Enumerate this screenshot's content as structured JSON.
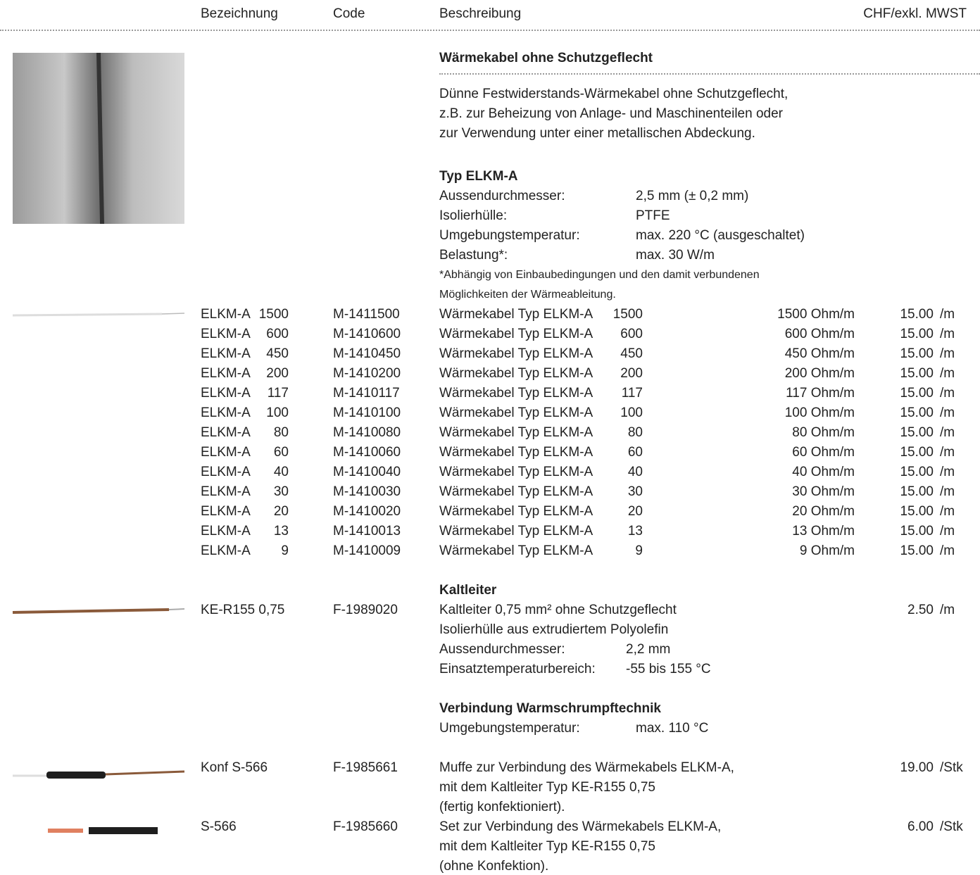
{
  "header": {
    "columns": [
      "Bezeichnung",
      "Code",
      "Beschreibung",
      "CHF/exkl. MWST"
    ]
  },
  "section": {
    "title": "Wärmekabel ohne Schutzgeflecht",
    "intro": [
      "Dünne Festwiderstands-Wärmekabel ohne Schutzgeflecht,",
      "z.B. zur Beheizung von Anlage- und Maschinenteilen oder",
      "zur Verwendung unter einer metallischen Abdeckung."
    ]
  },
  "type_block": {
    "title": "Typ ELKM-A",
    "specs": [
      [
        "Aussendurchmesser:",
        "2,5 mm (± 0,2 mm)"
      ],
      [
        "Isolierhülle:",
        "PTFE"
      ],
      [
        "Umgebungstemperatur:",
        "max. 220 °C (ausgeschaltet)"
      ],
      [
        "Belastung*:",
        "max. 30 W/m"
      ]
    ],
    "note": [
      "*Abhängig von Einbaubedingungen und den damit verbundenen",
      "Möglichkeiten der Wärmeableitung."
    ]
  },
  "products": [
    {
      "name": "ELKM-A",
      "size": "1500",
      "code": "M-1411500",
      "description": "Wärmekabel Typ ELKM-A",
      "resistance": "1500 Ohm/m",
      "price": "15.00",
      "unit": "/m"
    },
    {
      "name": "ELKM-A",
      "size": "600",
      "code": "M-1410600",
      "description": "Wärmekabel Typ ELKM-A",
      "resistance": "600 Ohm/m",
      "price": "15.00",
      "unit": "/m"
    },
    {
      "name": "ELKM-A",
      "size": "450",
      "code": "M-1410450",
      "description": "Wärmekabel Typ ELKM-A",
      "resistance": "450 Ohm/m",
      "price": "15.00",
      "unit": "/m"
    },
    {
      "name": "ELKM-A",
      "size": "200",
      "code": "M-1410200",
      "description": "Wärmekabel Typ ELKM-A",
      "resistance": "200 Ohm/m",
      "price": "15.00",
      "unit": "/m"
    },
    {
      "name": "ELKM-A",
      "size": "117",
      "code": "M-1410117",
      "description": "Wärmekabel Typ ELKM-A",
      "resistance": "117 Ohm/m",
      "price": "15.00",
      "unit": "/m"
    },
    {
      "name": "ELKM-A",
      "size": "100",
      "code": "M-1410100",
      "description": "Wärmekabel Typ ELKM-A",
      "resistance": "100 Ohm/m",
      "price": "15.00",
      "unit": "/m"
    },
    {
      "name": "ELKM-A",
      "size": "80",
      "code": "M-1410080",
      "description": "Wärmekabel Typ ELKM-A",
      "resistance": "80 Ohm/m",
      "price": "15.00",
      "unit": "/m"
    },
    {
      "name": "ELKM-A",
      "size": "60",
      "code": "M-1410060",
      "description": "Wärmekabel Typ ELKM-A",
      "resistance": "60 Ohm/m",
      "price": "15.00",
      "unit": "/m"
    },
    {
      "name": "ELKM-A",
      "size": "40",
      "code": "M-1410040",
      "description": "Wärmekabel Typ ELKM-A",
      "resistance": "40 Ohm/m",
      "price": "15.00",
      "unit": "/m"
    },
    {
      "name": "ELKM-A",
      "size": "30",
      "code": "M-1410030",
      "description": "Wärmekabel Typ ELKM-A",
      "resistance": "30 Ohm/m",
      "price": "15.00",
      "unit": "/m"
    },
    {
      "name": "ELKM-A",
      "size": "20",
      "code": "M-1410020",
      "description": "Wärmekabel Typ ELKM-A",
      "resistance": "20 Ohm/m",
      "price": "15.00",
      "unit": "/m"
    },
    {
      "name": "ELKM-A",
      "size": "13",
      "code": "M-1410013",
      "description": "Wärmekabel Typ ELKM-A",
      "resistance": "13 Ohm/m",
      "price": "15.00",
      "unit": "/m"
    },
    {
      "name": "ELKM-A",
      "size": "9",
      "code": "M-1410009",
      "description": "Wärmekabel Typ ELKM-A",
      "resistance": "9 Ohm/m",
      "price": "15.00",
      "unit": "/m"
    }
  ],
  "kaltleiter": {
    "title": "Kaltleiter",
    "product": {
      "name": "KE-R155 0,75",
      "code": "F-1989020",
      "description": [
        "Kaltleiter 0,75 mm² ohne Schutzgeflecht",
        "Isolierhülle aus extrudiertem Polyolefin"
      ],
      "price": "2.50",
      "unit": "/m"
    },
    "specs": [
      [
        "Aussendurchmesser:",
        "2,2 mm"
      ],
      [
        "Einsatztemperaturbereich:",
        "-55 bis 155 °C"
      ]
    ]
  },
  "verbindung": {
    "title": "Verbindung Warmschrumpftechnik",
    "specs": [
      [
        "Umgebungstemperatur:",
        "max. 110 °C"
      ]
    ],
    "products": [
      {
        "name": "Konf S-566",
        "code": "F-1985661",
        "description": [
          "Muffe zur Verbindung des Wärmekabels ELKM-A,",
          "mit dem Kaltleiter Typ KE-R155 0,75",
          "(fertig konfektioniert)."
        ],
        "price": "19.00",
        "unit": "/Stk"
      },
      {
        "name": "S-566",
        "code": "F-1985660",
        "description": [
          "Set zur Verbindung des Wärmekabels ELKM-A,",
          "mit dem Kaltleiter Typ KE-R155 0,75",
          "(ohne Konfektion)."
        ],
        "price": "6.00",
        "unit": "/Stk"
      }
    ]
  }
}
